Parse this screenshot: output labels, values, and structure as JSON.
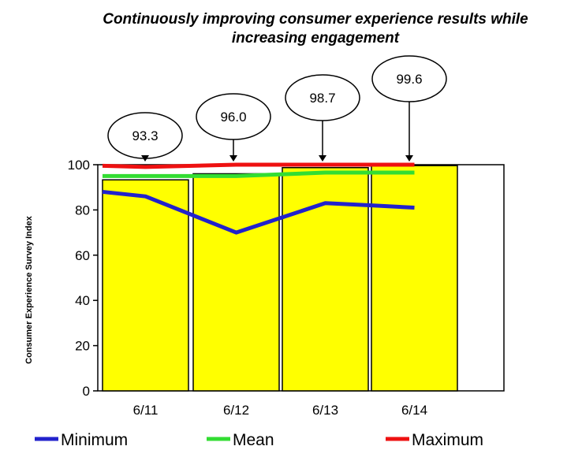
{
  "chart_data": {
    "type": "bar",
    "title_lines": [
      "Continuously improving consumer experience results while",
      "increasing engagement"
    ],
    "xlabel": "",
    "ylabel": "Consumer Experience Survey Index",
    "categories": [
      "6/11",
      "6/12",
      "6/13",
      "6/14"
    ],
    "values": [
      93.3,
      96.0,
      98.7,
      99.6
    ],
    "value_labels": [
      "93.3",
      "96.0",
      "98.7",
      "99.6"
    ],
    "ylim": [
      0,
      100
    ],
    "yticks": [
      "0",
      "20",
      "40",
      "60",
      "80",
      "100"
    ],
    "grid": false,
    "bar_color": "#ffff00",
    "series": [
      {
        "name": "Minimum",
        "color": "#2222cc",
        "x": [
          0.0,
          0.5,
          1.5,
          2.5,
          3.0,
          3.5
        ],
        "y": [
          88,
          86,
          70,
          83,
          82,
          81
        ]
      },
      {
        "name": "Mean",
        "color": "#33dd33",
        "x": [
          0.0,
          1.5,
          2.5,
          3.5
        ],
        "y": [
          95,
          95,
          96.5,
          96.5
        ]
      },
      {
        "name": "Maximum",
        "color": "#ee1111",
        "x": [
          0.0,
          0.5,
          1.5,
          2.5,
          3.5
        ],
        "y": [
          99.5,
          99,
          100,
          100,
          100
        ]
      }
    ],
    "legend_position": "bottom"
  }
}
